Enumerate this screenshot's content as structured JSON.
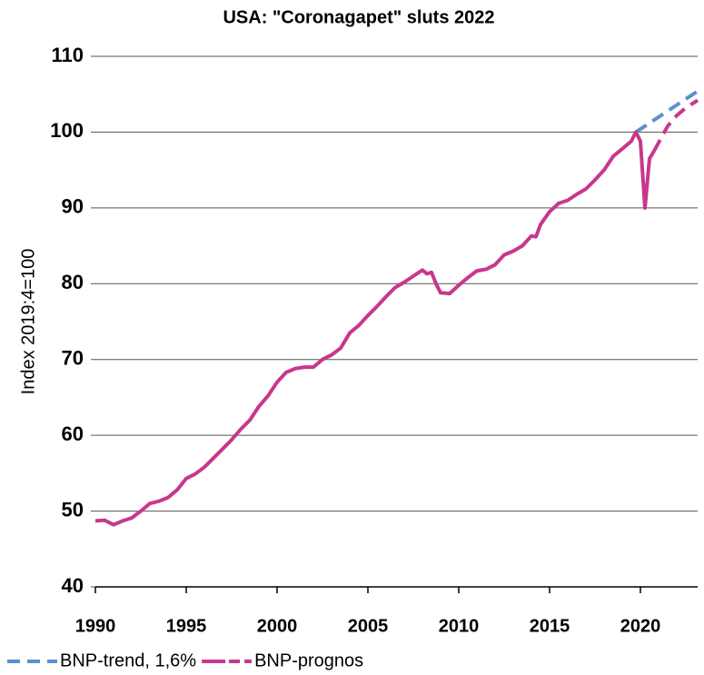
{
  "chart_data": {
    "type": "line",
    "title": "USA: \"Coronagapet\" sluts 2022",
    "y_label": "Index 2019:4=100",
    "xlim": [
      1990,
      2023.15
    ],
    "xticks": [
      1990,
      1995,
      2000,
      2005,
      2010,
      2015,
      2020
    ],
    "ylim": [
      40,
      110
    ],
    "yticks": [
      40,
      50,
      60,
      70,
      80,
      90,
      100,
      110
    ],
    "grid": true,
    "legend": "bottom-left",
    "series": [
      {
        "name": "BNP-trend, 1,6%",
        "color": "#5b8fd0",
        "dashed": true,
        "x": [
          2019.75,
          2023.15
        ],
        "values": [
          100,
          105.4
        ]
      },
      {
        "name": "BNP-prognos",
        "color": "#c7388c",
        "dashed_from": 2020.75,
        "x": [
          1990,
          1990.5,
          1991,
          1991.5,
          1992,
          1992.5,
          1993,
          1993.5,
          1994,
          1994.5,
          1995,
          1995.5,
          1996,
          1996.5,
          1997,
          1997.5,
          1998,
          1998.5,
          1999,
          1999.5,
          2000,
          2000.5,
          2001,
          2001.5,
          2002,
          2002.5,
          2003,
          2003.5,
          2004,
          2004.5,
          2005,
          2005.5,
          2006,
          2006.5,
          2007,
          2007.5,
          2008,
          2008.25,
          2008.5,
          2008.75,
          2009,
          2009.5,
          2010,
          2010.5,
          2011,
          2011.5,
          2012,
          2012.5,
          2013,
          2013.5,
          2014,
          2014.25,
          2014.5,
          2015,
          2015.5,
          2016,
          2016.5,
          2017,
          2017.5,
          2018,
          2018.5,
          2019,
          2019.5,
          2019.75,
          2020,
          2020.25,
          2020.5,
          2020.75,
          2021,
          2021.5,
          2022,
          2022.5,
          2023.15
        ],
        "values": [
          48.7,
          48.8,
          48.2,
          48.7,
          49.1,
          50.0,
          51.0,
          51.3,
          51.8,
          52.8,
          54.3,
          54.9,
          55.8,
          57.0,
          58.2,
          59.4,
          60.8,
          62.0,
          63.8,
          65.2,
          67.0,
          68.3,
          68.8,
          69.0,
          69.0,
          70.0,
          70.6,
          71.5,
          73.5,
          74.5,
          75.8,
          77.0,
          78.3,
          79.5,
          80.2,
          81.0,
          81.8,
          81.3,
          81.5,
          80.0,
          78.8,
          78.7,
          79.8,
          80.8,
          81.7,
          81.9,
          82.5,
          83.8,
          84.3,
          85.0,
          86.3,
          86.2,
          87.8,
          89.5,
          90.6,
          91.0,
          91.8,
          92.5,
          93.7,
          95.0,
          96.8,
          97.8,
          98.8,
          100.0,
          98.8,
          90.0,
          96.5,
          97.5,
          98.6,
          100.8,
          102.2,
          103.2,
          104.2
        ]
      }
    ]
  }
}
